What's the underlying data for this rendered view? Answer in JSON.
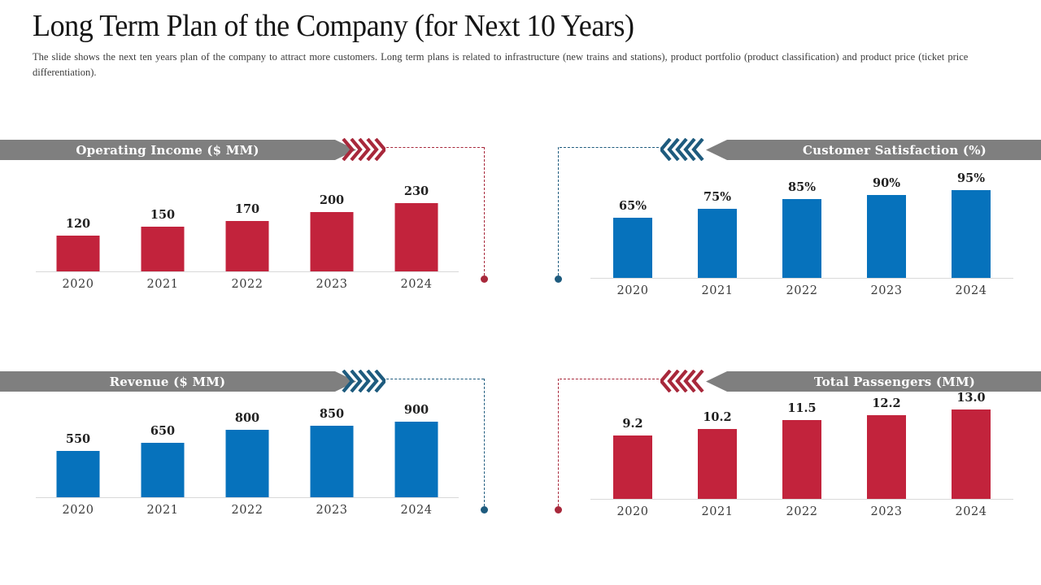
{
  "page": {
    "title": "Long Term Plan of the Company (for Next 10 Years)",
    "subtitle": "The slide shows the next ten years plan of the company to attract more customers. Long term plans is related to infrastructure (new trains and stations), product portfolio (product classification) and product price (ticket price differentiation)."
  },
  "colors": {
    "bar_red": "#C2233C",
    "bar_blue": "#0672BC",
    "accent_red": "#A8283B",
    "accent_blue": "#1E5B7E",
    "banner_gray": "#7F7F7F",
    "axis_gray": "#D9D9D9",
    "value_label_dark": "#1F1F1F",
    "year_label_gray": "#3A3A3A"
  },
  "chart_data": [
    {
      "id": "operating-income",
      "type": "bar",
      "title": "Operating Income ($ MM)",
      "categories": [
        "2020",
        "2021",
        "2022",
        "2023",
        "2024"
      ],
      "values": [
        120,
        150,
        170,
        200,
        230
      ],
      "labels": [
        "120",
        "150",
        "170",
        "200",
        "230"
      ],
      "ylim": [
        0,
        296
      ],
      "bar_color_key": "bar_red",
      "accent_color_key": "accent_red",
      "arrow_direction": "right",
      "grid": false,
      "legend": "none"
    },
    {
      "id": "customer-satisfaction",
      "type": "bar",
      "title": "Customer Satisfaction (%)",
      "categories": [
        "2020",
        "2021",
        "2022",
        "2023",
        "2024"
      ],
      "values": [
        65,
        75,
        85,
        90,
        95
      ],
      "labels": [
        "65%",
        "75%",
        "85%",
        "90%",
        "95%"
      ],
      "ylim": [
        0,
        95
      ],
      "bar_color_key": "bar_blue",
      "accent_color_key": "accent_blue",
      "arrow_direction": "left",
      "grid": false,
      "legend": "none"
    },
    {
      "id": "revenue",
      "type": "bar",
      "title": "Revenue ($ MM)",
      "categories": [
        "2020",
        "2021",
        "2022",
        "2023",
        "2024"
      ],
      "values": [
        550,
        650,
        800,
        850,
        900
      ],
      "labels": [
        "550",
        "650",
        "800",
        "850",
        "900"
      ],
      "ylim": [
        0,
        1045
      ],
      "bar_color_key": "bar_blue",
      "accent_color_key": "accent_blue",
      "arrow_direction": "right",
      "grid": false,
      "legend": "none"
    },
    {
      "id": "total-passengers",
      "type": "bar",
      "title": "Total Passengers (MM)",
      "categories": [
        "2020",
        "2021",
        "2022",
        "2023",
        "2024"
      ],
      "values": [
        9.2,
        10.2,
        11.5,
        12.2,
        13.0
      ],
      "labels": [
        "9.2",
        "10.2",
        "11.5",
        "12.2",
        "13.0"
      ],
      "ylim": [
        0,
        12.77
      ],
      "bar_color_key": "bar_red",
      "accent_color_key": "accent_red",
      "arrow_direction": "left",
      "grid": false,
      "legend": "none"
    }
  ]
}
